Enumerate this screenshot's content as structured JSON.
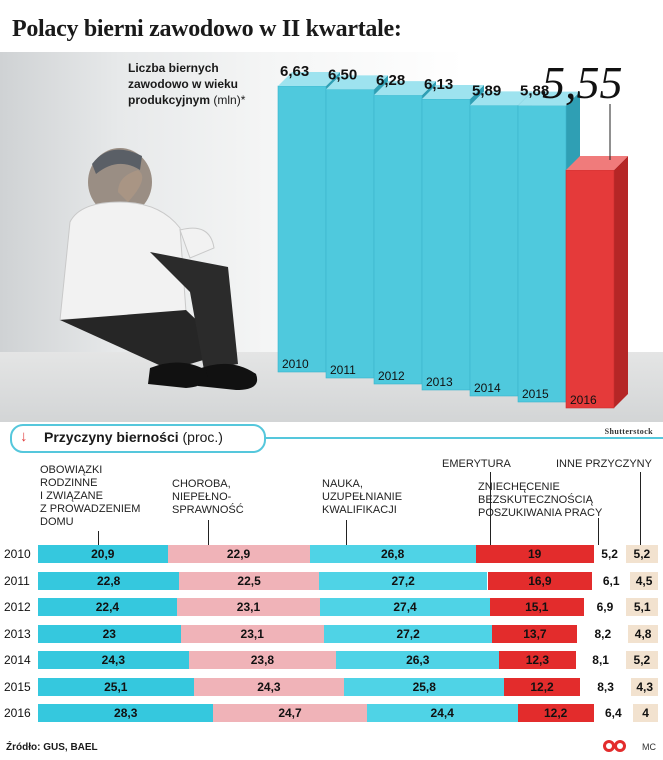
{
  "title": "Polacy bierni zawodowo w II kwartale:",
  "intro": {
    "line1": "Liczba biernych",
    "line2": "zawodowo w wieku",
    "line3": "produkcyjnym",
    "unit": "(mln)*"
  },
  "credit": "Shutterstock",
  "section": {
    "title": "Przyczyny bierności",
    "unit": "(proc.)"
  },
  "source": "Źródło: GUS, BAEL",
  "footer_initials": "MC",
  "colors": {
    "bar_main": "#4fc9dd",
    "bar_highlight": "#e53a3a",
    "obowiazki": "#35c8de",
    "choroba": "#f0b3b8",
    "nauka": "#4fd3e6",
    "emerytura": "#e32c2c",
    "zniechecenie": "#ffffff",
    "inne": "#f2e2cf"
  },
  "chart_data": [
    {
      "type": "bar",
      "categories": [
        "2010",
        "2011",
        "2012",
        "2013",
        "2014",
        "2015",
        "2016"
      ],
      "values": [
        6.63,
        6.5,
        6.28,
        6.13,
        5.89,
        5.88,
        5.55
      ],
      "value_labels": [
        "6,63",
        "6,50",
        "6,28",
        "6,13",
        "5,89",
        "5,88",
        "5,55"
      ],
      "highlight": "2016",
      "ylabel": "Liczba biernych zawodowo w wieku produkcyjnym (mln)*"
    },
    {
      "type": "bar",
      "stacked": true,
      "orientation": "horizontal",
      "categories": [
        "2010",
        "2011",
        "2012",
        "2013",
        "2014",
        "2015",
        "2016"
      ],
      "series": [
        {
          "name": "Obowiązki rodzinne i związane z prowadzeniem domu",
          "values": [
            20.9,
            22.8,
            22.4,
            23,
            24.3,
            25.1,
            28.3
          ],
          "labels": [
            "20,9",
            "22,8",
            "22,4",
            "23",
            "24,3",
            "25,1",
            "28,3"
          ]
        },
        {
          "name": "Choroba, niepełnosprawność",
          "values": [
            22.9,
            22.5,
            23.1,
            23.1,
            23.8,
            24.3,
            24.7
          ],
          "labels": [
            "22,9",
            "22,5",
            "23,1",
            "23,1",
            "23,8",
            "24,3",
            "24,7"
          ]
        },
        {
          "name": "Nauka, uzupełnianie kwalifikacji",
          "values": [
            26.8,
            27.2,
            27.4,
            27.2,
            26.3,
            25.8,
            24.4
          ],
          "labels": [
            "26,8",
            "27,2",
            "27,4",
            "27,2",
            "26,3",
            "25,8",
            "24,4"
          ]
        },
        {
          "name": "Emerytura",
          "values": [
            19,
            16.9,
            15.1,
            13.7,
            12.3,
            12.2,
            12.2
          ],
          "labels": [
            "19",
            "16,9",
            "15,1",
            "13,7",
            "12,3",
            "12,2",
            "12,2"
          ]
        },
        {
          "name": "Zniechęcenie bezskutecznością poszukiwania pracy",
          "values": [
            5.2,
            6.1,
            6.9,
            8.2,
            8.1,
            8.3,
            6.4
          ],
          "labels": [
            "5,2",
            "6,1",
            "6,9",
            "8,2",
            "8,1",
            "8,3",
            "6,4"
          ]
        },
        {
          "name": "Inne przyczyny",
          "values": [
            5.2,
            4.5,
            5.1,
            4.8,
            5.2,
            4.3,
            4
          ],
          "labels": [
            "5,2",
            "4,5",
            "5,1",
            "4,8",
            "5,2",
            "4,3",
            "4"
          ]
        }
      ],
      "category_labels": [
        "Obowiązki\nrodzinne\ni związane\nz prowadzeniem\ndomu",
        "Choroba,\nniepełno-\nsprawność",
        "Nauka,\nuzupełnianie\nkwalifikacji",
        "Emerytura",
        "Zniechęcenie\nbezskutecznością\nposzukiwania pracy",
        "Inne przyczyny"
      ]
    }
  ]
}
